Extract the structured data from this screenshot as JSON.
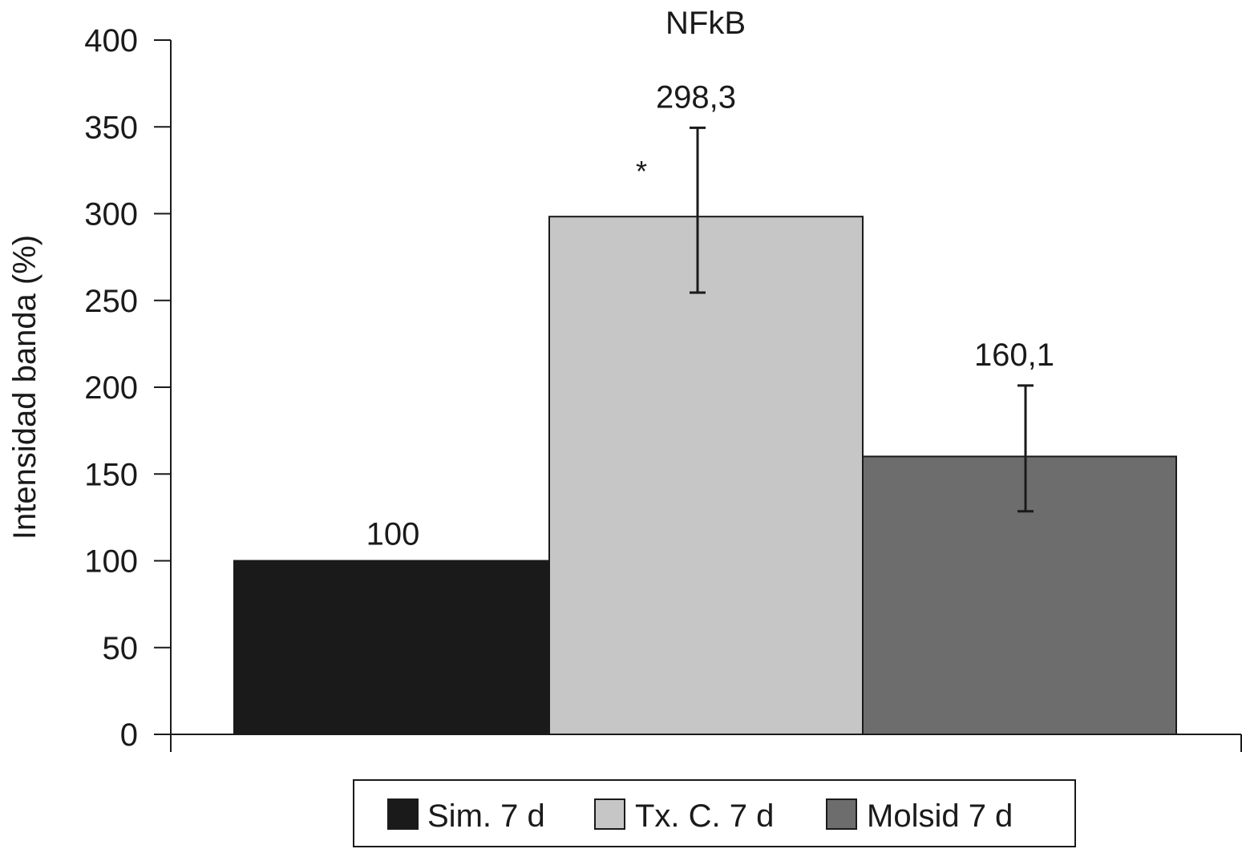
{
  "chart_data": {
    "type": "bar",
    "title": "NFkB",
    "ylabel": "Intensidad banda (%)",
    "xlabel": "",
    "ylim": [
      0,
      400
    ],
    "yticks": [
      "0",
      "50",
      "100",
      "150",
      "200",
      "250",
      "300",
      "350",
      "400"
    ],
    "legend_position": "bottom",
    "series": [
      {
        "name": "Sim. 7 d",
        "value": 100,
        "label": "100",
        "color": "#1a1a1a",
        "error": null,
        "annotation": ""
      },
      {
        "name": "Tx. C. 7 d",
        "value": 298.3,
        "label": "298,3",
        "color": "#c6c6c6",
        "error": [
          254.5,
          349.5
        ],
        "annotation": "*"
      },
      {
        "name": "Molsid 7 d",
        "value": 160.1,
        "label": "160,1",
        "color": "#6d6d6d",
        "error": [
          128.5,
          201
        ],
        "annotation": ""
      }
    ]
  }
}
